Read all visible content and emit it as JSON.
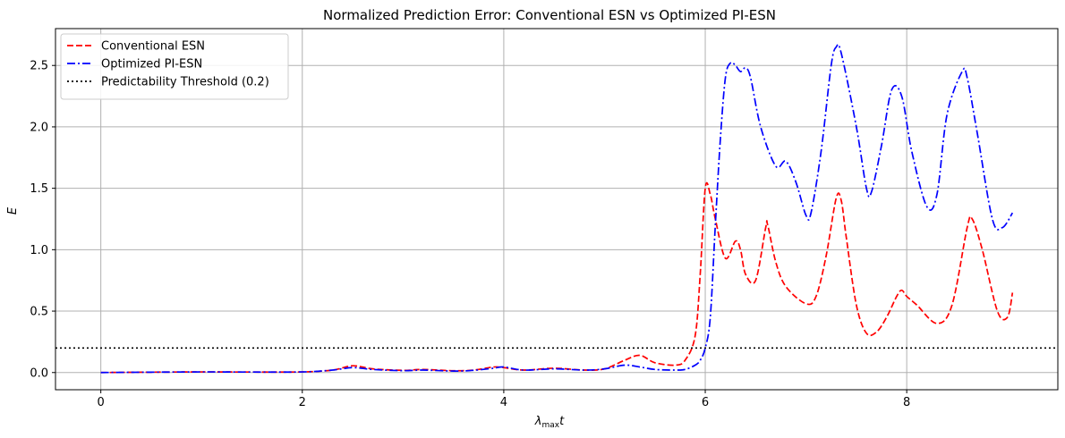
{
  "chart_data": {
    "type": "line",
    "title": "Normalized Prediction Error: Conventional ESN vs Optimized PI-ESN",
    "xlabel": "λmax t",
    "ylabel": "E",
    "xlim": [
      -0.45,
      9.5
    ],
    "ylim": [
      -0.14,
      2.8
    ],
    "xticks": [
      0,
      2,
      4,
      6,
      8
    ],
    "yticks": [
      0.0,
      0.5,
      1.0,
      1.5,
      2.0,
      2.5
    ],
    "xtick_labels": [
      "0",
      "2",
      "4",
      "6",
      "8"
    ],
    "ytick_labels": [
      "0.0",
      "0.5",
      "1.0",
      "1.5",
      "2.0",
      "2.5"
    ],
    "grid": true,
    "legend_position": "top-left",
    "series": [
      {
        "name": "Conventional ESN",
        "color": "#ff0000",
        "style": "dashed",
        "x": [
          0,
          0.5,
          1.0,
          1.5,
          2.0,
          2.3,
          2.5,
          2.7,
          3.0,
          3.2,
          3.5,
          3.7,
          3.9,
          4.0,
          4.2,
          4.5,
          4.8,
          5.0,
          5.2,
          5.35,
          5.5,
          5.7,
          5.8,
          5.9,
          5.95,
          6.0,
          6.05,
          6.1,
          6.2,
          6.3,
          6.35,
          6.4,
          6.5,
          6.6,
          6.62,
          6.7,
          6.8,
          7.0,
          7.1,
          7.2,
          7.3,
          7.35,
          7.4,
          7.5,
          7.6,
          7.7,
          7.8,
          7.9,
          7.95,
          8.0,
          8.1,
          8.3,
          8.45,
          8.6,
          8.65,
          8.75,
          8.9,
          9.0,
          9.05
        ],
        "values": [
          0,
          0.003,
          0.005,
          0.004,
          0.005,
          0.02,
          0.055,
          0.03,
          0.018,
          0.025,
          0.015,
          0.02,
          0.045,
          0.04,
          0.02,
          0.035,
          0.02,
          0.03,
          0.1,
          0.14,
          0.08,
          0.06,
          0.1,
          0.3,
          0.8,
          1.5,
          1.45,
          1.25,
          0.93,
          1.07,
          1.0,
          0.8,
          0.75,
          1.18,
          1.2,
          0.9,
          0.7,
          0.56,
          0.62,
          0.95,
          1.42,
          1.4,
          1.1,
          0.55,
          0.32,
          0.33,
          0.45,
          0.62,
          0.67,
          0.62,
          0.55,
          0.4,
          0.55,
          1.18,
          1.25,
          1.0,
          0.5,
          0.45,
          0.65
        ]
      },
      {
        "name": "Optimized PI-ESN",
        "color": "#0000ff",
        "style": "dashdot",
        "x": [
          0,
          0.5,
          1.0,
          1.5,
          2.0,
          2.3,
          2.5,
          2.7,
          3.0,
          3.2,
          3.5,
          3.7,
          3.9,
          4.0,
          4.2,
          4.5,
          4.8,
          5.0,
          5.2,
          5.35,
          5.5,
          5.7,
          5.8,
          5.9,
          5.95,
          6.0,
          6.05,
          6.1,
          6.15,
          6.2,
          6.25,
          6.3,
          6.35,
          6.4,
          6.45,
          6.55,
          6.7,
          6.8,
          6.9,
          7.0,
          7.05,
          7.15,
          7.25,
          7.3,
          7.35,
          7.5,
          7.6,
          7.65,
          7.75,
          7.85,
          7.95,
          8.05,
          8.2,
          8.3,
          8.4,
          8.55,
          8.6,
          8.7,
          8.85,
          8.95,
          9.05
        ],
        "values": [
          0,
          0.003,
          0.005,
          0.004,
          0.005,
          0.02,
          0.04,
          0.025,
          0.015,
          0.02,
          0.012,
          0.018,
          0.035,
          0.045,
          0.02,
          0.03,
          0.02,
          0.03,
          0.06,
          0.045,
          0.025,
          0.02,
          0.025,
          0.06,
          0.1,
          0.2,
          0.45,
          1.2,
          1.9,
          2.4,
          2.52,
          2.5,
          2.45,
          2.48,
          2.4,
          2.0,
          1.68,
          1.72,
          1.55,
          1.28,
          1.3,
          1.8,
          2.5,
          2.65,
          2.6,
          2.0,
          1.5,
          1.47,
          1.85,
          2.3,
          2.25,
          1.8,
          1.35,
          1.45,
          2.1,
          2.45,
          2.4,
          1.95,
          1.25,
          1.18,
          1.3
        ]
      },
      {
        "name": "Predictability Threshold (0.2)",
        "color": "#000000",
        "style": "dotted",
        "hline": 0.2
      }
    ]
  }
}
